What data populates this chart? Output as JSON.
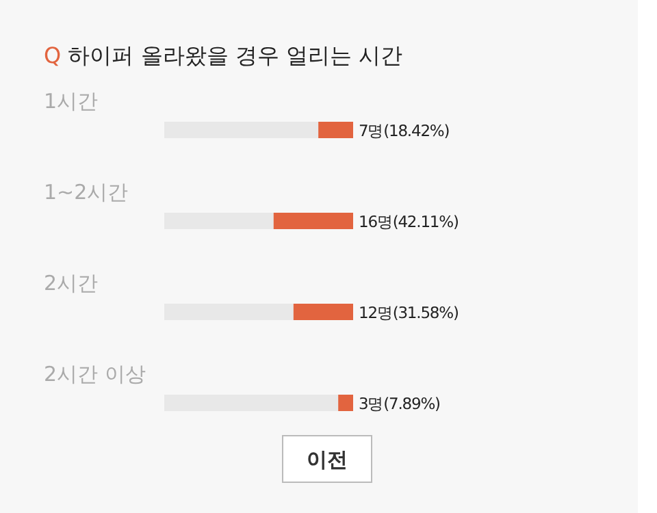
{
  "chart_data": {
    "type": "bar",
    "orientation": "horizontal",
    "title": "Q 하이퍼 올라왔을 경우 얼리는 시간",
    "categories": [
      "1시간",
      "1~2시간",
      "2시간",
      "2시간 이상"
    ],
    "values": [
      18.42,
      42.11,
      31.58,
      7.89
    ],
    "value_labels": [
      "7명(18.42%)",
      "16명(42.11%)",
      "12명(31.58%)",
      "3명(7.89%)"
    ],
    "color": "#e2643f",
    "xlim": [
      100,
      0
    ],
    "tick_labels": "y",
    "annotations": [
      "이전"
    ]
  }
}
